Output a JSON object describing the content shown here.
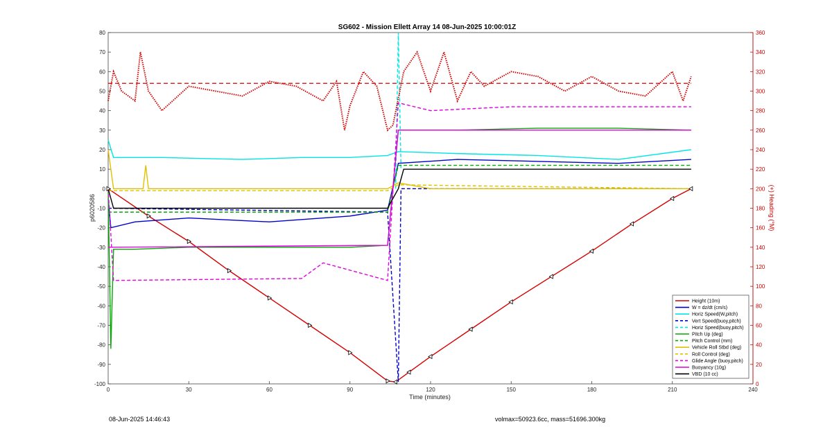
{
  "chart_data": {
    "type": "line",
    "title": "SG602 - Mission Ellett Array 14 08-Jun-2025 10:00:01Z",
    "xlabel": "Time (minutes)",
    "ylabel": "p6020586",
    "ylabel_right": "(+) Heading (°M)",
    "xlim": [
      0,
      240
    ],
    "ylim": [
      -100,
      80
    ],
    "ylim_right": [
      0,
      360
    ],
    "xticks": [
      "0",
      "30",
      "60",
      "90",
      "120",
      "150",
      "180",
      "210",
      "240"
    ],
    "yticks": [
      "80",
      "70",
      "60",
      "50",
      "40",
      "30",
      "20",
      "10",
      "0",
      "-10",
      "-20",
      "-30",
      "-40",
      "-50",
      "-60",
      "-70",
      "-80",
      "-90",
      "-100"
    ],
    "yticks_right": [
      "360",
      "340",
      "320",
      "300",
      "280",
      "260",
      "240",
      "220",
      "200",
      "180",
      "160",
      "140",
      "120",
      "100",
      "80",
      "60",
      "40",
      "20",
      "0"
    ],
    "grid": false,
    "legend_position": "bottom-right",
    "colors": {
      "height": "#d40000",
      "w": "#0000cc",
      "horiz": "#00e5e5",
      "pitch": "#00aa00",
      "roll": "#e0c000",
      "buoy": "#e000e0",
      "vbd": "#000000"
    },
    "series": [
      {
        "name": "Height (10m)",
        "x": [
          0,
          15,
          30,
          45,
          60,
          75,
          90,
          104,
          107,
          112,
          120,
          135,
          150,
          165,
          180,
          195,
          210,
          217
        ],
        "values": [
          0,
          -14,
          -27,
          -42,
          -56,
          -70,
          -84,
          -98.5,
          -99,
          -94,
          -86,
          -72,
          -58,
          -45,
          -32,
          -18,
          -5,
          0
        ]
      },
      {
        "name": "W = dz/dt (cm/s)",
        "x": [
          0,
          1,
          10,
          30,
          60,
          90,
          104,
          108,
          130,
          160,
          190,
          217
        ],
        "values": [
          -5,
          -20,
          -17,
          -15,
          -17,
          -14,
          -11,
          13,
          15,
          14,
          13,
          15
        ]
      },
      {
        "name": "Horiz Speed(W,pitch)",
        "x": [
          0,
          2,
          20,
          50,
          72,
          90,
          104,
          108,
          130,
          160,
          190,
          217
        ],
        "values": [
          25,
          16,
          16,
          15,
          16,
          16,
          17,
          19,
          18,
          17,
          15,
          20
        ]
      },
      {
        "name": "Vert Speed(buoy,pitch)",
        "x": [
          0,
          104,
          108,
          109,
          217
        ],
        "values": [
          -10,
          -12,
          -99,
          0,
          0
        ]
      },
      {
        "name": "Horiz Speed(buoy,pitch)",
        "x": [
          107,
          108,
          109
        ],
        "values": [
          0,
          80,
          10
        ]
      },
      {
        "name": "Pitch Up (deg)",
        "x": [
          0,
          1,
          2,
          10,
          30,
          60,
          90,
          104,
          108,
          130,
          160,
          190,
          217
        ],
        "values": [
          0,
          -82,
          -31,
          -31,
          -30,
          -30,
          -30,
          -29,
          30,
          30,
          31,
          31,
          30
        ]
      },
      {
        "name": "Pitch Control (mm)",
        "x": [
          0,
          104,
          108,
          217
        ],
        "values": [
          -12,
          -12,
          12,
          12
        ]
      },
      {
        "name": "Vehicle Roll Stbd (deg)",
        "x": [
          0,
          2,
          13,
          14,
          15,
          30,
          60,
          90,
          104,
          108,
          120,
          150,
          180,
          217
        ],
        "values": [
          20,
          0,
          0,
          12,
          0,
          0,
          0,
          0,
          0,
          3,
          0,
          0,
          0,
          0
        ]
      },
      {
        "name": "Roll Control (deg)",
        "x": [
          0,
          104,
          108,
          217
        ],
        "values": [
          -1,
          -1,
          2,
          0
        ]
      },
      {
        "name": "Glide Angle (buoy,pitch)",
        "x": [
          0,
          2,
          72,
          80,
          104,
          108,
          120,
          150,
          217
        ],
        "values": [
          0,
          -47,
          -46,
          -38,
          -47,
          44,
          40,
          42,
          42
        ]
      },
      {
        "name": "Buoyancy (10g)",
        "x": [
          0,
          104,
          108,
          217
        ],
        "values": [
          -30,
          -29,
          30,
          30
        ]
      },
      {
        "name": "VBD (10 cc)",
        "x": [
          0,
          2,
          104,
          108,
          110,
          217
        ],
        "values": [
          0,
          -10,
          -10,
          0,
          10,
          10
        ]
      }
    ],
    "heading": {
      "name": "Heading",
      "mean": 308,
      "x": [
        0,
        2,
        5,
        10,
        12,
        15,
        20,
        30,
        40,
        50,
        60,
        70,
        80,
        85,
        88,
        90,
        95,
        100,
        104,
        106,
        110,
        115,
        120,
        125,
        130,
        135,
        140,
        150,
        160,
        170,
        180,
        190,
        200,
        210,
        214,
        217
      ],
      "values": [
        290,
        320,
        300,
        290,
        340,
        300,
        280,
        305,
        300,
        295,
        310,
        305,
        290,
        310,
        260,
        285,
        320,
        305,
        260,
        265,
        320,
        340,
        300,
        340,
        290,
        320,
        305,
        320,
        315,
        300,
        315,
        300,
        295,
        320,
        290,
        315
      ]
    },
    "x_label_ticks": [
      "0",
      "30",
      "60",
      "90",
      "120",
      "150",
      "180",
      "210",
      "240"
    ]
  },
  "legend": [
    {
      "label": "Height (10m)",
      "color": "#d40000",
      "dash": "solid"
    },
    {
      "label": "W = dz/dt (cm/s)",
      "color": "#0000cc",
      "dash": "solid"
    },
    {
      "label": "Horiz Speed(W,pitch)",
      "color": "#00e5e5",
      "dash": "solid"
    },
    {
      "label": "Vert Speed(buoy,pitch)",
      "color": "#0000cc",
      "dash": "dashed"
    },
    {
      "label": "Horiz Speed(buoy,pitch)",
      "color": "#00e5e5",
      "dash": "dashed"
    },
    {
      "label": "Pitch Up (deg)",
      "color": "#00aa00",
      "dash": "solid"
    },
    {
      "label": "Pitch Control (mm)",
      "color": "#00aa00",
      "dash": "dashed"
    },
    {
      "label": "Vehicle Roll Stbd (deg)",
      "color": "#e0c000",
      "dash": "solid"
    },
    {
      "label": "Roll Control (deg)",
      "color": "#e0c000",
      "dash": "dashed"
    },
    {
      "label": "Glide Angle (buoy,pitch)",
      "color": "#e000e0",
      "dash": "dashed"
    },
    {
      "label": "Buoyancy (10g)",
      "color": "#e000e0",
      "dash": "solid"
    },
    {
      "label": "VBD (10 cc)",
      "color": "#000000",
      "dash": "solid"
    }
  ],
  "footer": {
    "timestamp": "08-Jun-2025 14:46:43",
    "volmax": "volmax=50923.6cc, mass=51696.300kg"
  }
}
